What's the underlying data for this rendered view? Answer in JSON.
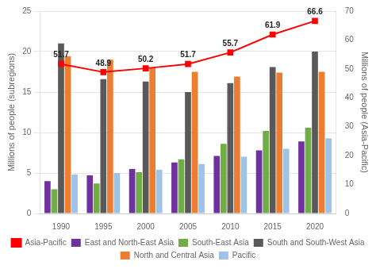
{
  "chart_data": {
    "type": "bar",
    "categories": [
      "1990",
      "1995",
      "2000",
      "2005",
      "2010",
      "2015",
      "2020"
    ],
    "series": [
      {
        "name": "East and North-East Asia",
        "color": "#7030a0",
        "values": [
          4.0,
          4.7,
          5.5,
          6.3,
          7.1,
          7.8,
          8.9
        ]
      },
      {
        "name": "South-East Asia",
        "color": "#70ad47",
        "values": [
          3.0,
          3.7,
          5.1,
          6.7,
          8.6,
          10.2,
          10.6
        ]
      },
      {
        "name": "South and South-West Asia",
        "color": "#595959",
        "values": [
          21.0,
          16.6,
          16.3,
          15.0,
          16.1,
          18.1,
          20.0
        ]
      },
      {
        "name": "North and Central Asia",
        "color": "#ed7d31",
        "values": [
          19.4,
          19.0,
          18.0,
          17.5,
          16.9,
          17.4,
          17.5
        ]
      },
      {
        "name": "Pacific",
        "color": "#9dc3e6",
        "values": [
          4.8,
          5.0,
          5.4,
          6.1,
          7.0,
          8.0,
          9.3
        ]
      },
      {
        "name": "Asia-Pacific",
        "type": "line",
        "axis": "y2",
        "color": "#ff0000",
        "marker": "square",
        "data_labels": true,
        "values": [
          51.7,
          48.9,
          50.2,
          51.7,
          55.7,
          61.9,
          66.6
        ]
      }
    ],
    "ylabel": "Millions of people (subregions)",
    "y2label": "Millions of people (Asia-Pacific)",
    "ylim": [
      0,
      25
    ],
    "yticks": [
      0,
      5,
      10,
      15,
      20,
      25
    ],
    "y2lim": [
      0,
      70
    ],
    "y2ticks": [
      0,
      10,
      20,
      30,
      40,
      50,
      60,
      70
    ],
    "grid": true,
    "legend": "bottom"
  }
}
